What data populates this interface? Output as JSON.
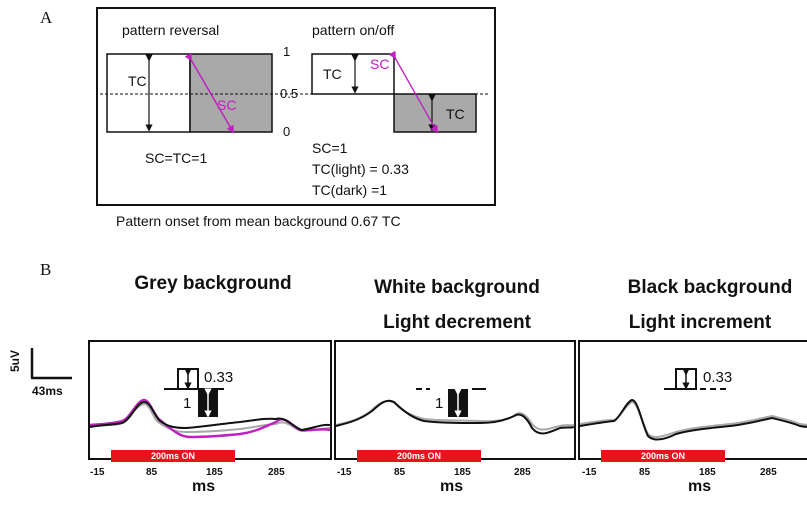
{
  "panel_a": {
    "letter": "A",
    "label_reversal": "pattern reversal",
    "label_onoff": "pattern on/off",
    "tick_1": "1",
    "tick_05": "0.5",
    "tick_0": "0",
    "tc": "TC",
    "sc": "SC",
    "eq_reversal": "SC=TC=1",
    "eq_sc": "SC=1",
    "eq_tc_light": "TC(light) = 0.33",
    "eq_tc_dark": "TC(dark) =1",
    "caption": "Pattern onset from mean background 0.67 TC"
  },
  "panel_b": {
    "letter": "B",
    "scale_v": "5uV",
    "scale_t": "43ms",
    "x_ticks": [
      "-15",
      "85",
      "185",
      "285"
    ],
    "x_unit": "ms",
    "on_label": "200ms ON",
    "panels": [
      {
        "title1": "Grey background",
        "title2": "",
        "val_top": "0.33",
        "val_left": "1"
      },
      {
        "title1": "White background",
        "title2": "Light decrement",
        "val_left": "1"
      },
      {
        "title1": "Black background",
        "title2": "Light increment",
        "val_top": "0.33"
      }
    ]
  },
  "colors": {
    "magenta": "#c020c0",
    "grey_trace": "#a8a8a8",
    "black_trace": "#111111",
    "red_bar": "#e8141c",
    "grey_fill": "#a9a9a9"
  }
}
